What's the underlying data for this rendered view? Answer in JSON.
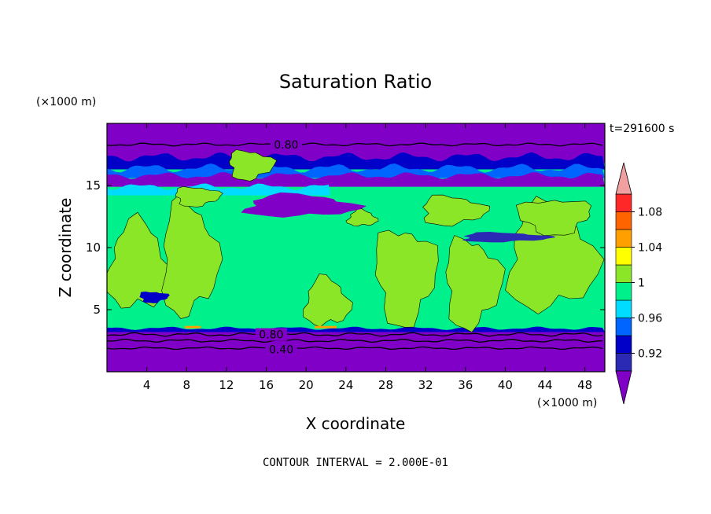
{
  "chart_data": {
    "type": "heatmap",
    "title": "Saturation Ratio",
    "xlabel": "X coordinate",
    "ylabel": "Z coordinate",
    "x_unit": "(×1000 m)",
    "z_unit": "(×1000 m)",
    "time_label": "t=291600 s",
    "footer": "CONTOUR INTERVAL = 2.000E-01",
    "xlim": [
      0,
      50
    ],
    "ylim": [
      0,
      20
    ],
    "x_ticks": [
      "4",
      "8",
      "12",
      "16",
      "20",
      "24",
      "28",
      "32",
      "36",
      "40",
      "44",
      "48"
    ],
    "y_ticks": [
      "5",
      "10",
      "15"
    ],
    "contour_labels": [
      "0.80",
      "0.80",
      "0.40"
    ],
    "colorbar": {
      "labels": [
        "0.92",
        "0.96",
        "1",
        "1.04",
        "1.08"
      ],
      "levels": [
        0.9,
        0.92,
        0.94,
        0.96,
        0.98,
        1.0,
        1.02,
        1.04,
        1.06,
        1.08,
        1.1
      ],
      "colors": [
        "#8000c8",
        "#2a2ab4",
        "#0000c8",
        "#0064ff",
        "#00dcff",
        "#00f08c",
        "#8ce628",
        "#ffff00",
        "#ffa000",
        "#ff6400",
        "#ff2828",
        "#f0a0a0"
      ],
      "under_color": "#8000c8",
      "over_color": "#f0a0a0"
    }
  }
}
